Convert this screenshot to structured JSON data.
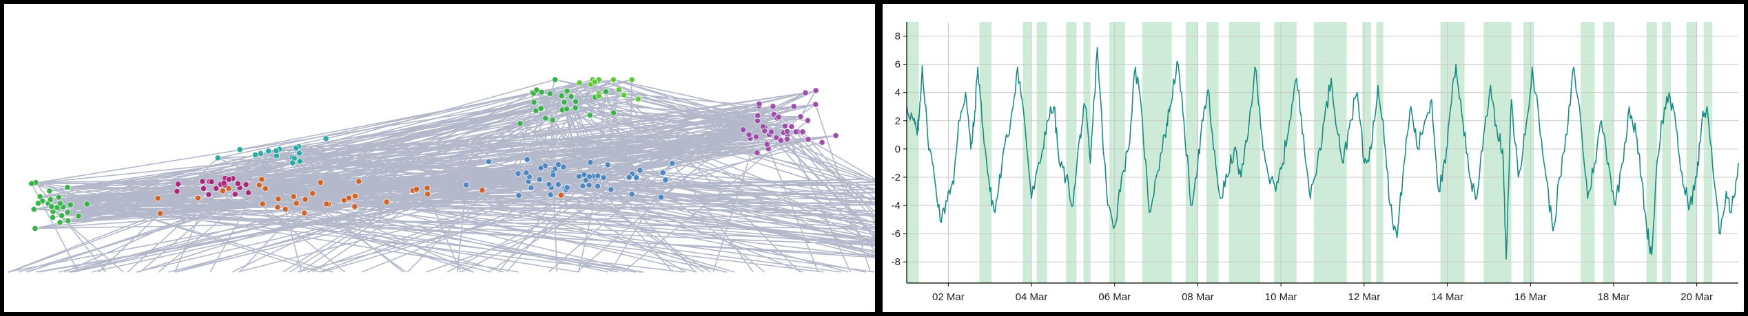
{
  "network_graph": {
    "colors": {
      "green": "#3cb04a",
      "bright_green": "#5ec93a",
      "teal": "#2aa8a3",
      "magenta": "#a8287a",
      "orange": "#d06428",
      "blue": "#4f86c0",
      "purple": "#9a4fa8",
      "edge": "#9aa0b8"
    }
  },
  "chart_data": {
    "type": "line",
    "title": "",
    "xlabel": "",
    "ylabel": "",
    "x_range": [
      "2024-03-01",
      "2024-03-21"
    ],
    "ylim": [
      -9.5,
      9
    ],
    "y_ticks": [
      -8,
      -6,
      -4,
      -2,
      0,
      2,
      4,
      6,
      8
    ],
    "x_tick_labels": [
      "02 Mar",
      "04 Mar",
      "06 Mar",
      "08 Mar",
      "10 Mar",
      "12 Mar",
      "14 Mar",
      "16 Mar",
      "18 Mar",
      "20 Mar"
    ],
    "x_tick_dates": [
      "2024-03-02",
      "2024-03-04",
      "2024-03-06",
      "2024-03-08",
      "2024-03-10",
      "2024-03-12",
      "2024-03-14",
      "2024-03-16",
      "2024-03-18",
      "2024-03-20"
    ],
    "grid": true,
    "line_color": "#1a8a86",
    "band_color": "#cdebd6",
    "bands": [
      [
        "2024-03-01T00:00",
        "2024-03-01T07:00"
      ],
      [
        "2024-03-02T18:00",
        "2024-03-03T01:00"
      ],
      [
        "2024-03-03T19:00",
        "2024-03-04T00:00"
      ],
      [
        "2024-03-04T03:00",
        "2024-03-04T09:00"
      ],
      [
        "2024-03-04T20:00",
        "2024-03-05T02:00"
      ],
      [
        "2024-03-05T06:00",
        "2024-03-05T10:00"
      ],
      [
        "2024-03-05T21:00",
        "2024-03-06T06:00"
      ],
      [
        "2024-03-06T16:00",
        "2024-03-07T09:00"
      ],
      [
        "2024-03-07T17:00",
        "2024-03-08T00:00"
      ],
      [
        "2024-03-08T05:00",
        "2024-03-08T12:00"
      ],
      [
        "2024-03-08T18:00",
        "2024-03-09T12:00"
      ],
      [
        "2024-03-09T20:00",
        "2024-03-10T09:00"
      ],
      [
        "2024-03-10T19:00",
        "2024-03-11T14:00"
      ],
      [
        "2024-03-11T23:00",
        "2024-03-12T04:00"
      ],
      [
        "2024-03-12T07:00",
        "2024-03-12T11:00"
      ],
      [
        "2024-03-13T20:00",
        "2024-03-14T10:00"
      ],
      [
        "2024-03-14T21:00",
        "2024-03-15T13:00"
      ],
      [
        "2024-03-15T20:00",
        "2024-03-16T02:00"
      ],
      [
        "2024-03-17T05:00",
        "2024-03-17T13:00"
      ],
      [
        "2024-03-17T18:00",
        "2024-03-18T00:00"
      ],
      [
        "2024-03-18T19:00",
        "2024-03-19T01:00"
      ],
      [
        "2024-03-19T04:00",
        "2024-03-19T09:00"
      ],
      [
        "2024-03-19T18:00",
        "2024-03-20T00:00"
      ],
      [
        "2024-03-20T04:00",
        "2024-03-20T09:00"
      ]
    ],
    "series": [
      {
        "values": [
          [
            "2024-03-01T00:00",
            3.0
          ],
          [
            "2024-03-01T04:00",
            2.0
          ],
          [
            "2024-03-01T06:00",
            1.0
          ],
          [
            "2024-03-01T07:00",
            2.0
          ],
          [
            "2024-03-01T09:00",
            5.9
          ],
          [
            "2024-03-01T12:00",
            1.0
          ],
          [
            "2024-03-01T16:00",
            -2.0
          ],
          [
            "2024-03-01T20:00",
            -5.2
          ],
          [
            "2024-03-02T00:00",
            -3.0
          ],
          [
            "2024-03-02T03:00",
            -2.5
          ],
          [
            "2024-03-02T06:00",
            2.0
          ],
          [
            "2024-03-02T10:00",
            4.0
          ],
          [
            "2024-03-02T13:00",
            0.0
          ],
          [
            "2024-03-02T15:00",
            2.0
          ],
          [
            "2024-03-02T17:00",
            5.8
          ],
          [
            "2024-03-02T20:00",
            1.5
          ],
          [
            "2024-03-03T00:00",
            -3.0
          ],
          [
            "2024-03-03T03:00",
            -4.5
          ],
          [
            "2024-03-03T07:00",
            -1.0
          ],
          [
            "2024-03-03T12:00",
            2.0
          ],
          [
            "2024-03-03T16:00",
            5.8
          ],
          [
            "2024-03-03T20:00",
            2.0
          ],
          [
            "2024-03-04T00:00",
            -3.5
          ],
          [
            "2024-03-04T05:00",
            -1.0
          ],
          [
            "2024-03-04T09:00",
            2.0
          ],
          [
            "2024-03-04T13:00",
            3.0
          ],
          [
            "2024-03-04T16:00",
            -1.0
          ],
          [
            "2024-03-04T20:00",
            -2.0
          ],
          [
            "2024-03-05T00:00",
            -4.0
          ],
          [
            "2024-03-05T04:00",
            1.0
          ],
          [
            "2024-03-05T07:00",
            3.0
          ],
          [
            "2024-03-05T10:00",
            -1.0
          ],
          [
            "2024-03-05T14:00",
            7.2
          ],
          [
            "2024-03-05T17:00",
            1.0
          ],
          [
            "2024-03-05T20:00",
            -4.0
          ],
          [
            "2024-03-06T00:00",
            -5.5
          ],
          [
            "2024-03-06T04:00",
            -2.0
          ],
          [
            "2024-03-06T08:00",
            0.0
          ],
          [
            "2024-03-06T12:00",
            5.8
          ],
          [
            "2024-03-06T16:00",
            2.0
          ],
          [
            "2024-03-06T20:00",
            -4.5
          ],
          [
            "2024-03-07T00:00",
            -2.0
          ],
          [
            "2024-03-07T05:00",
            1.0
          ],
          [
            "2024-03-07T08:00",
            3.0
          ],
          [
            "2024-03-07T12:00",
            6.2
          ],
          [
            "2024-03-07T16:00",
            2.0
          ],
          [
            "2024-03-07T20:00",
            -4.0
          ],
          [
            "2024-03-08T00:00",
            -1.0
          ],
          [
            "2024-03-08T03:00",
            2.0
          ],
          [
            "2024-03-08T06:00",
            4.2
          ],
          [
            "2024-03-08T09:00",
            0.0
          ],
          [
            "2024-03-08T13:00",
            -3.5
          ],
          [
            "2024-03-08T17:00",
            -2.0
          ],
          [
            "2024-03-08T21:00",
            0.0
          ],
          [
            "2024-03-09T01:00",
            -2.0
          ],
          [
            "2024-03-09T05:00",
            1.0
          ],
          [
            "2024-03-09T09:00",
            5.8
          ],
          [
            "2024-03-09T13:00",
            1.0
          ],
          [
            "2024-03-09T17:00",
            -2.0
          ],
          [
            "2024-03-09T21:00",
            -3.0
          ],
          [
            "2024-03-10T01:00",
            -1.0
          ],
          [
            "2024-03-10T05:00",
            2.0
          ],
          [
            "2024-03-10T09:00",
            5.0
          ],
          [
            "2024-03-10T13:00",
            1.0
          ],
          [
            "2024-03-10T17:00",
            -3.5
          ],
          [
            "2024-03-10T21:00",
            -1.0
          ],
          [
            "2024-03-11T01:00",
            2.0
          ],
          [
            "2024-03-11T05:00",
            5.0
          ],
          [
            "2024-03-11T09:00",
            1.0
          ],
          [
            "2024-03-11T12:00",
            -1.0
          ],
          [
            "2024-03-11T16:00",
            2.0
          ],
          [
            "2024-03-11T20:00",
            4.0
          ],
          [
            "2024-03-12T00:00",
            -1.0
          ],
          [
            "2024-03-12T04:00",
            0.0
          ],
          [
            "2024-03-12T08:00",
            4.5
          ],
          [
            "2024-03-12T11:00",
            2.0
          ],
          [
            "2024-03-12T15:00",
            -4.0
          ],
          [
            "2024-03-12T19:00",
            -6.3
          ],
          [
            "2024-03-12T23:00",
            -1.0
          ],
          [
            "2024-03-13T03:00",
            3.0
          ],
          [
            "2024-03-13T07:00",
            0.0
          ],
          [
            "2024-03-13T11:00",
            2.0
          ],
          [
            "2024-03-13T15:00",
            3.5
          ],
          [
            "2024-03-13T19:00",
            -3.0
          ],
          [
            "2024-03-13T23:00",
            -1.0
          ],
          [
            "2024-03-14T02:00",
            3.0
          ],
          [
            "2024-03-14T05:00",
            6.0
          ],
          [
            "2024-03-14T09:00",
            2.0
          ],
          [
            "2024-03-14T13:00",
            -2.0
          ],
          [
            "2024-03-14T17:00",
            -3.5
          ],
          [
            "2024-03-14T21:00",
            1.0
          ],
          [
            "2024-03-15T01:00",
            4.5
          ],
          [
            "2024-03-15T05:00",
            1.0
          ],
          [
            "2024-03-15T08:00",
            0.0
          ],
          [
            "2024-03-15T10:00",
            -7.8
          ],
          [
            "2024-03-15T13:00",
            3.5
          ],
          [
            "2024-03-15T17:00",
            -2.0
          ],
          [
            "2024-03-15T21:00",
            1.0
          ],
          [
            "2024-03-16T01:00",
            5.8
          ],
          [
            "2024-03-16T05:00",
            2.0
          ],
          [
            "2024-03-16T09:00",
            -2.0
          ],
          [
            "2024-03-16T13:00",
            -5.8
          ],
          [
            "2024-03-16T17:00",
            -2.0
          ],
          [
            "2024-03-16T21:00",
            1.0
          ],
          [
            "2024-03-17T01:00",
            5.8
          ],
          [
            "2024-03-17T05:00",
            2.0
          ],
          [
            "2024-03-17T09:00",
            -3.5
          ],
          [
            "2024-03-17T13:00",
            -1.0
          ],
          [
            "2024-03-17T17:00",
            2.0
          ],
          [
            "2024-03-17T21:00",
            -1.0
          ],
          [
            "2024-03-18T01:00",
            -4.0
          ],
          [
            "2024-03-18T05:00",
            -1.0
          ],
          [
            "2024-03-18T09:00",
            3.0
          ],
          [
            "2024-03-18T13:00",
            1.0
          ],
          [
            "2024-03-18T16:00",
            -2.0
          ],
          [
            "2024-03-18T19:00",
            -5.5
          ],
          [
            "2024-03-18T22:00",
            -7.5
          ],
          [
            "2024-03-19T01:00",
            -1.0
          ],
          [
            "2024-03-19T04:00",
            2.0
          ],
          [
            "2024-03-19T08:00",
            4.0
          ],
          [
            "2024-03-19T12:00",
            1.5
          ],
          [
            "2024-03-19T16:00",
            -2.5
          ],
          [
            "2024-03-19T20:00",
            -4.0
          ],
          [
            "2024-03-20T00:00",
            -2.0
          ],
          [
            "2024-03-20T03:00",
            2.0
          ],
          [
            "2024-03-20T06:00",
            3.0
          ],
          [
            "2024-03-20T09:00",
            -1.0
          ],
          [
            "2024-03-20T13:00",
            -6.0
          ],
          [
            "2024-03-20T17:00",
            -3.0
          ],
          [
            "2024-03-20T20:00",
            -4.5
          ],
          [
            "2024-03-21T00:00",
            -1.0
          ]
        ]
      }
    ]
  }
}
